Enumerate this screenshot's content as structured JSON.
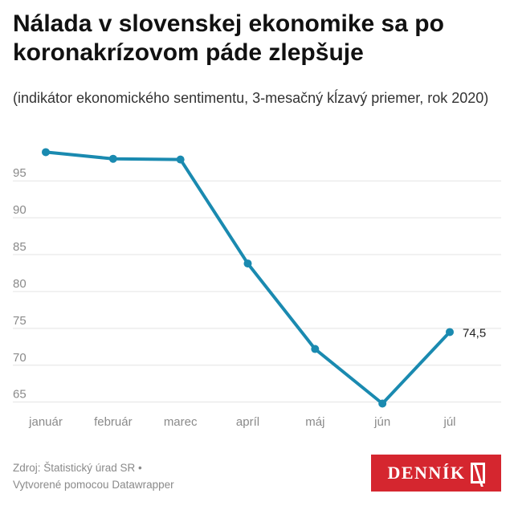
{
  "title": "Nálada v slovenskej ekonomike sa po koronakrízovom páde zlepšuje",
  "subtitle": "(indikátor ekonomického sentimentu, 3-mesačný kĺzavý priemer, rok 2020)",
  "footer": {
    "source": "Zdroj: Štatistický úrad SR •",
    "credit": "Vytvorené pomocou Datawrapper"
  },
  "logo": {
    "text": "DENNÍK"
  },
  "colors": {
    "line": "#1a8ab0",
    "accent": "#d5262f"
  },
  "chart_data": {
    "type": "line",
    "categories": [
      "január",
      "február",
      "marec",
      "apríl",
      "máj",
      "jún",
      "júl"
    ],
    "series": [
      {
        "values": [
          98.9,
          98.0,
          97.9,
          83.8,
          72.2,
          64.8,
          74.5
        ]
      }
    ],
    "yticks": [
      95,
      90,
      85,
      80,
      75,
      70,
      65
    ],
    "ylim": [
      64.2,
      100.8
    ],
    "grid": "horizontal",
    "annotations": [
      {
        "index": 6,
        "text": "74,5"
      }
    ]
  }
}
